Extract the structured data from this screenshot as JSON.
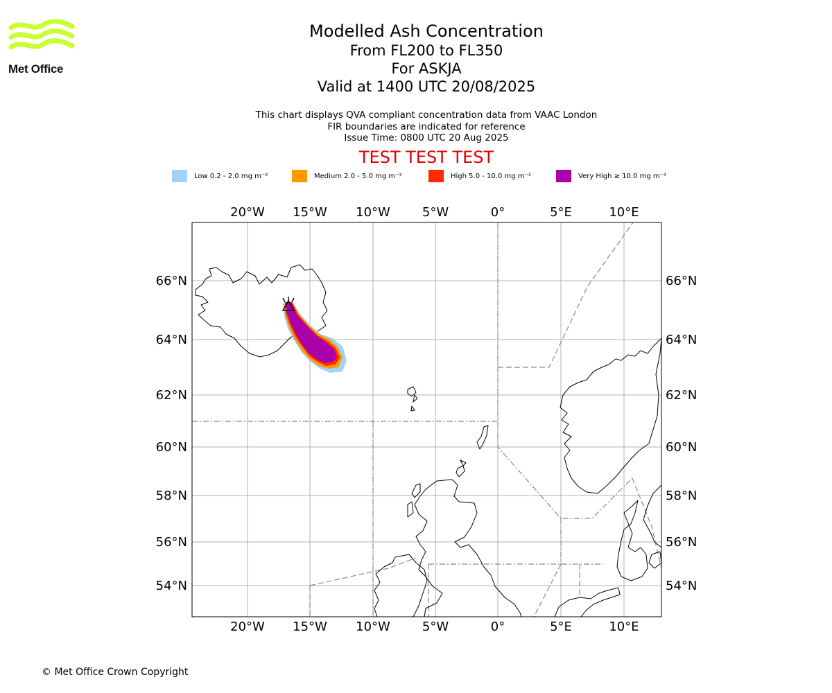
{
  "brand": {
    "logo_text": "Met Office",
    "logo_color": "#c8ff2e"
  },
  "titles": {
    "main": "Modelled Ash Concentration",
    "level": "From FL200 to FL350",
    "volcano": "For ASKJA",
    "valid": "Valid at 1400 UTC 20/08/2025"
  },
  "subtitles": {
    "line1": "This chart displays QVA compliant concentration data from VAAC London",
    "line2": "FIR boundaries are indicated for reference",
    "line3": "Issue Time: 0800 UTC 20 Aug 2025"
  },
  "test_banner": "TEST TEST TEST",
  "test_color": "#e00000",
  "legend": [
    {
      "label": "Low 0.2 - 2.0 mg m⁻³",
      "color": "#a0d2fa"
    },
    {
      "label": "Medium 2.0 - 5.0 mg m⁻³",
      "color": "#ff9900"
    },
    {
      "label": "High 5.0 - 10.0 mg m⁻³",
      "color": "#ff2a00"
    },
    {
      "label": "Very High ≥ 10.0 mg m⁻³",
      "color": "#aa00aa"
    }
  ],
  "axes": {
    "lon_labels": [
      "20°W",
      "15°W",
      "10°W",
      "5°W",
      "0°",
      "5°E",
      "10°E"
    ],
    "lat_labels": [
      "66°N",
      "64°N",
      "62°N",
      "60°N",
      "58°N",
      "56°N",
      "54°N"
    ]
  },
  "copyright": "© Met Office Crown Copyright"
}
